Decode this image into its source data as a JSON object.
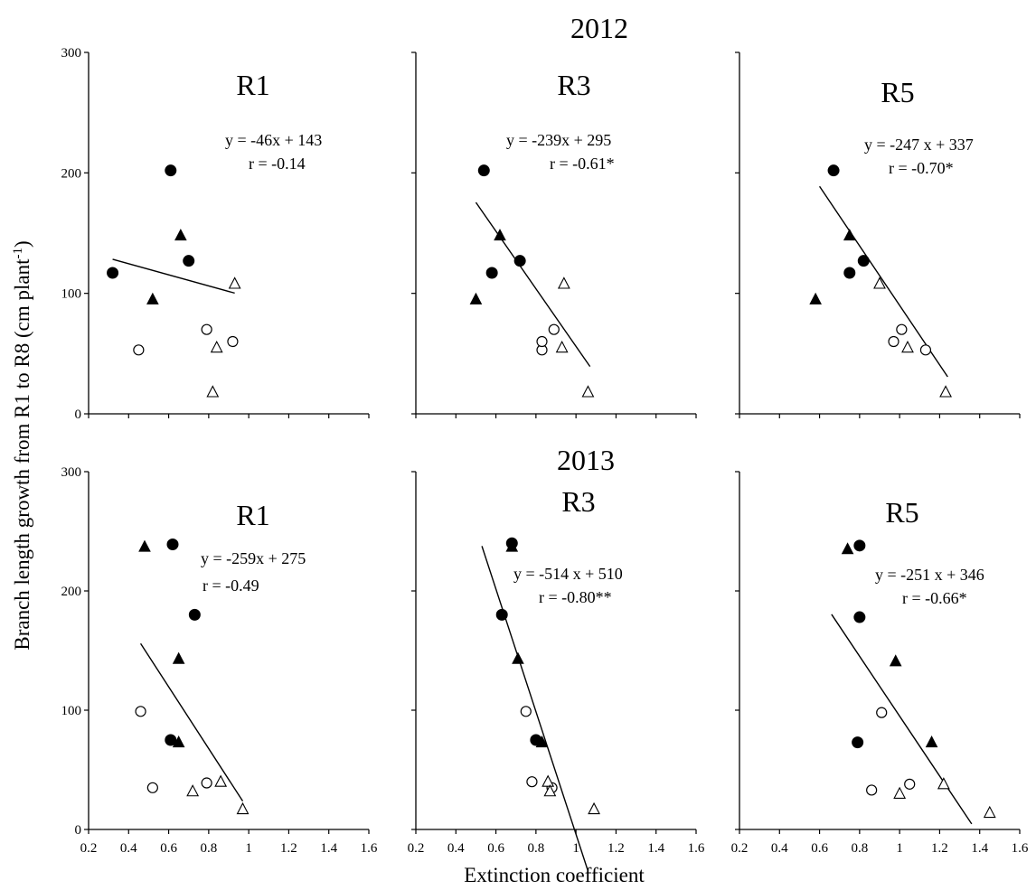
{
  "figure": {
    "ylabel": "Branch length growth from R1 to R8 (cm plant",
    "ylabel_sup": "-1",
    "ylabel_tail": ")",
    "xlabel": "Extinction coefficient"
  },
  "year_labels": [
    "2012",
    "2013"
  ],
  "x_ticks": [
    "0.2",
    "0.4",
    "0.6",
    "0.8",
    "1",
    "1.2",
    "1.4",
    "1.6"
  ],
  "y_ticks": [
    "0",
    "100",
    "200",
    "300"
  ],
  "chart_data": [
    {
      "type": "scatter",
      "year": "2012",
      "title": "R1",
      "xlim": [
        0.2,
        1.6
      ],
      "ylim": [
        0,
        300
      ],
      "equation": "y = -46x + 143",
      "r_label": "r = -0.14",
      "fit": {
        "slope": -46,
        "intercept": 143,
        "x_range": [
          0.32,
          0.93
        ]
      },
      "series": [
        {
          "marker": "filled-circle",
          "points": [
            [
              0.32,
              117
            ],
            [
              0.61,
              202
            ],
            [
              0.7,
              127
            ]
          ]
        },
        {
          "marker": "filled-triangle",
          "points": [
            [
              0.52,
              95
            ],
            [
              0.66,
              148
            ]
          ]
        },
        {
          "marker": "open-circle",
          "points": [
            [
              0.45,
              53
            ],
            [
              0.79,
              70
            ],
            [
              0.92,
              60
            ]
          ]
        },
        {
          "marker": "open-triangle",
          "points": [
            [
              0.93,
              108
            ],
            [
              0.84,
              55
            ],
            [
              0.82,
              18
            ]
          ]
        }
      ]
    },
    {
      "type": "scatter",
      "year": "2012",
      "title": "R3",
      "xlim": [
        0.2,
        1.6
      ],
      "ylim": [
        0,
        300
      ],
      "equation": "y = -239x + 295",
      "r_label": "r = -0.61*",
      "fit": {
        "slope": -239,
        "intercept": 295,
        "x_range": [
          0.5,
          1.07
        ]
      },
      "series": [
        {
          "marker": "filled-circle",
          "points": [
            [
              0.54,
              202
            ],
            [
              0.58,
              117
            ],
            [
              0.72,
              127
            ]
          ]
        },
        {
          "marker": "filled-triangle",
          "points": [
            [
              0.5,
              95
            ],
            [
              0.62,
              148
            ]
          ]
        },
        {
          "marker": "open-circle",
          "points": [
            [
              0.83,
              53
            ],
            [
              0.83,
              60
            ],
            [
              0.89,
              70
            ]
          ]
        },
        {
          "marker": "open-triangle",
          "points": [
            [
              0.94,
              108
            ],
            [
              0.93,
              55
            ],
            [
              1.06,
              18
            ]
          ]
        }
      ]
    },
    {
      "type": "scatter",
      "year": "2012",
      "title": "R5",
      "xlim": [
        0.2,
        1.6
      ],
      "ylim": [
        0,
        300
      ],
      "equation": "y = -247 x + 337",
      "r_label": "r = -0.70*",
      "fit": {
        "slope": -247,
        "intercept": 337,
        "x_range": [
          0.6,
          1.24
        ]
      },
      "series": [
        {
          "marker": "filled-circle",
          "points": [
            [
              0.67,
              202
            ],
            [
              0.75,
              117
            ],
            [
              0.82,
              127
            ]
          ]
        },
        {
          "marker": "filled-triangle",
          "points": [
            [
              0.58,
              95
            ],
            [
              0.75,
              148
            ]
          ]
        },
        {
          "marker": "open-circle",
          "points": [
            [
              0.97,
              60
            ],
            [
              1.01,
              70
            ],
            [
              1.13,
              53
            ]
          ]
        },
        {
          "marker": "open-triangle",
          "points": [
            [
              0.9,
              108
            ],
            [
              1.04,
              55
            ],
            [
              1.23,
              18
            ]
          ]
        }
      ]
    },
    {
      "type": "scatter",
      "year": "2013",
      "title": "R1",
      "xlim": [
        0.2,
        1.6
      ],
      "ylim": [
        0,
        300
      ],
      "equation": "y = -259x + 275",
      "r_label": "r = -0.49",
      "fit": {
        "slope": -259,
        "intercept": 275,
        "x_range": [
          0.46,
          0.97
        ]
      },
      "series": [
        {
          "marker": "filled-circle",
          "points": [
            [
              0.62,
              239
            ],
            [
              0.73,
              180
            ],
            [
              0.61,
              75
            ]
          ]
        },
        {
          "marker": "filled-triangle",
          "points": [
            [
              0.48,
              237
            ],
            [
              0.65,
              143
            ],
            [
              0.65,
              73
            ]
          ]
        },
        {
          "marker": "open-circle",
          "points": [
            [
              0.46,
              99
            ],
            [
              0.52,
              35
            ],
            [
              0.79,
              39
            ]
          ]
        },
        {
          "marker": "open-triangle",
          "points": [
            [
              0.72,
              32
            ],
            [
              0.86,
              40
            ],
            [
              0.97,
              17
            ]
          ]
        }
      ]
    },
    {
      "type": "scatter",
      "year": "2013",
      "title": "R3",
      "xlim": [
        0.2,
        1.6
      ],
      "ylim": [
        0,
        300
      ],
      "equation": "y = -514 x + 510",
      "r_label": "r = -0.80**",
      "fit": {
        "slope": -514,
        "intercept": 510,
        "x_range": [
          0.53,
          1.06
        ]
      },
      "series": [
        {
          "marker": "filled-circle",
          "points": [
            [
              0.68,
              240
            ],
            [
              0.63,
              180
            ],
            [
              0.8,
              75
            ]
          ]
        },
        {
          "marker": "filled-triangle",
          "points": [
            [
              0.68,
              237
            ],
            [
              0.71,
              143
            ],
            [
              0.83,
              73
            ]
          ]
        },
        {
          "marker": "open-circle",
          "points": [
            [
              0.75,
              99
            ],
            [
              0.78,
              40
            ],
            [
              0.88,
              35
            ]
          ]
        },
        {
          "marker": "open-triangle",
          "points": [
            [
              0.86,
              40
            ],
            [
              0.87,
              32
            ],
            [
              1.09,
              17
            ]
          ]
        }
      ]
    },
    {
      "type": "scatter",
      "year": "2013",
      "title": "R5",
      "xlim": [
        0.2,
        1.6
      ],
      "ylim": [
        0,
        300
      ],
      "equation": "y = -251 x + 346",
      "r_label": "r = -0.66*",
      "fit": {
        "slope": -251,
        "intercept": 346,
        "x_range": [
          0.66,
          1.36
        ]
      },
      "series": [
        {
          "marker": "filled-circle",
          "points": [
            [
              0.8,
              238
            ],
            [
              0.8,
              178
            ],
            [
              0.79,
              73
            ]
          ]
        },
        {
          "marker": "filled-triangle",
          "points": [
            [
              0.74,
              235
            ],
            [
              0.98,
              141
            ],
            [
              1.16,
              73
            ]
          ]
        },
        {
          "marker": "open-circle",
          "points": [
            [
              0.91,
              98
            ],
            [
              0.86,
              33
            ],
            [
              1.05,
              38
            ]
          ]
        },
        {
          "marker": "open-triangle",
          "points": [
            [
              1.0,
              30
            ],
            [
              1.22,
              38
            ],
            [
              1.45,
              14
            ]
          ]
        }
      ]
    }
  ]
}
